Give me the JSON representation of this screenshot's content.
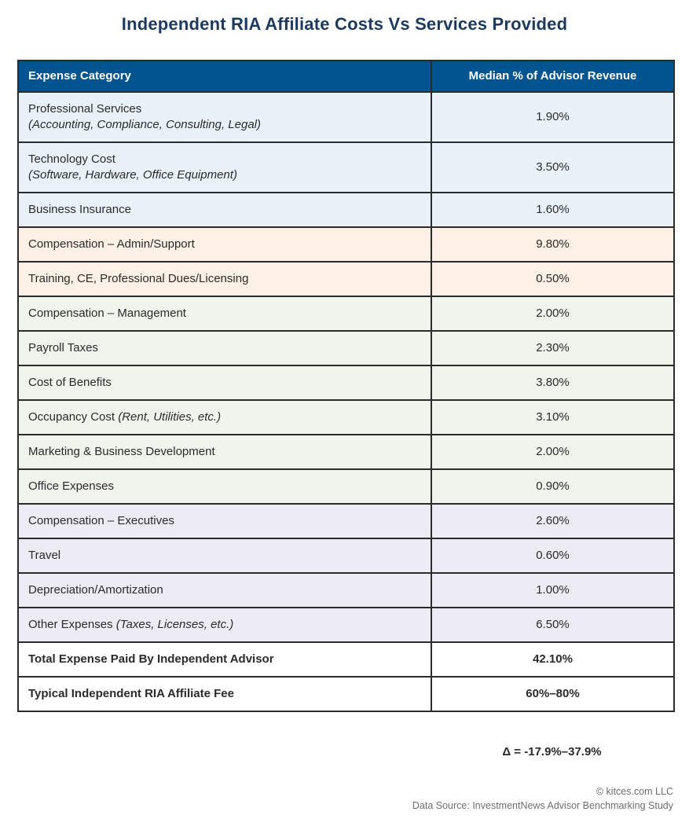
{
  "title": "Independent RIA Affiliate Costs Vs Services Provided",
  "table": {
    "headers": [
      "Expense Category",
      "Median % of Advisor Revenue"
    ],
    "rows": [
      {
        "category": "Professional Services",
        "detail": "(Accounting, Compliance, Consulting, Legal)",
        "detail_layout": "block",
        "value": "1.90%",
        "theme": "blue",
        "bold": false
      },
      {
        "category": "Technology Cost",
        "detail": "(Software, Hardware, Office Equipment)",
        "detail_layout": "block",
        "value": "3.50%",
        "theme": "blue",
        "bold": false
      },
      {
        "category": "Business Insurance",
        "value": "1.60%",
        "theme": "blue",
        "bold": false
      },
      {
        "category": "Compensation – Admin/Support",
        "value": "9.80%",
        "theme": "peach",
        "bold": false
      },
      {
        "category": "Training, CE, Professional Dues/Licensing",
        "value": "0.50%",
        "theme": "peach",
        "bold": false
      },
      {
        "category": "Compensation – Management",
        "value": "2.00%",
        "theme": "green",
        "bold": false
      },
      {
        "category": "Payroll Taxes",
        "value": "2.30%",
        "theme": "green",
        "bold": false
      },
      {
        "category": "Cost of Benefits",
        "value": "3.80%",
        "theme": "green",
        "bold": false
      },
      {
        "category": "Occupancy Cost",
        "detail": "(Rent, Utilities, etc.)",
        "detail_layout": "inline",
        "value": "3.10%",
        "theme": "green",
        "bold": false
      },
      {
        "category": "Marketing & Business Development",
        "value": "2.00%",
        "theme": "green",
        "bold": false
      },
      {
        "category": "Office Expenses",
        "value": "0.90%",
        "theme": "green",
        "bold": false
      },
      {
        "category": "Compensation – Executives",
        "value": "2.60%",
        "theme": "lavender",
        "bold": false
      },
      {
        "category": "Travel",
        "value": "0.60%",
        "theme": "lavender",
        "bold": false
      },
      {
        "category": "Depreciation/Amortization",
        "value": "1.00%",
        "theme": "lavender",
        "bold": false
      },
      {
        "category": "Other Expenses",
        "detail": "(Taxes, Licenses, etc.)",
        "detail_layout": "inline",
        "value": "6.50%",
        "theme": "lavender",
        "bold": false
      },
      {
        "category": "Total Expense Paid By Independent Advisor",
        "value": "42.10%",
        "theme": "white",
        "bold": true
      },
      {
        "category": "Typical Independent RIA Affiliate Fee",
        "value": "60%–80%",
        "theme": "white",
        "bold": true
      }
    ]
  },
  "delta_note": "Δ = -17.9%–37.9%",
  "footer": {
    "line1": "© kitces.com LLC",
    "line2": "Data Source: InvestmentNews Advisor Benchmarking Study"
  },
  "colors": {
    "title_text": "#1c3a5e",
    "header_bg": "#00548f",
    "header_text": "#ffffff",
    "border": "#2b2b2b",
    "body_text": "#2b2b2b",
    "footer_text": "#6e6e6e",
    "row_themes": {
      "blue": "#e9f2f9",
      "peach": "#fdf0e4",
      "green": "#f0f4ec",
      "lavender": "#edebf3",
      "white": "#ffffff"
    }
  },
  "chart_data": {
    "type": "table",
    "title": "Independent RIA Affiliate Costs Vs Services Provided",
    "columns": [
      "Expense Category",
      "Median % of Advisor Revenue"
    ],
    "rows": [
      [
        "Professional Services (Accounting, Compliance, Consulting, Legal)",
        "1.90%"
      ],
      [
        "Technology Cost (Software, Hardware, Office Equipment)",
        "3.50%"
      ],
      [
        "Business Insurance",
        "1.60%"
      ],
      [
        "Compensation – Admin/Support",
        "9.80%"
      ],
      [
        "Training, CE, Professional Dues/Licensing",
        "0.50%"
      ],
      [
        "Compensation – Management",
        "2.00%"
      ],
      [
        "Payroll Taxes",
        "2.30%"
      ],
      [
        "Cost of Benefits",
        "3.80%"
      ],
      [
        "Occupancy Cost (Rent, Utilities, etc.)",
        "3.10%"
      ],
      [
        "Marketing & Business Development",
        "2.00%"
      ],
      [
        "Office Expenses",
        "0.90%"
      ],
      [
        "Compensation – Executives",
        "2.60%"
      ],
      [
        "Travel",
        "0.60%"
      ],
      [
        "Depreciation/Amortization",
        "1.00%"
      ],
      [
        "Other Expenses (Taxes, Licenses, etc.)",
        "6.50%"
      ],
      [
        "Total Expense Paid By Independent Advisor",
        "42.10%"
      ],
      [
        "Typical Independent RIA Affiliate Fee",
        "60%–80%"
      ]
    ],
    "annotation": "Δ = -17.9%–37.9%"
  }
}
